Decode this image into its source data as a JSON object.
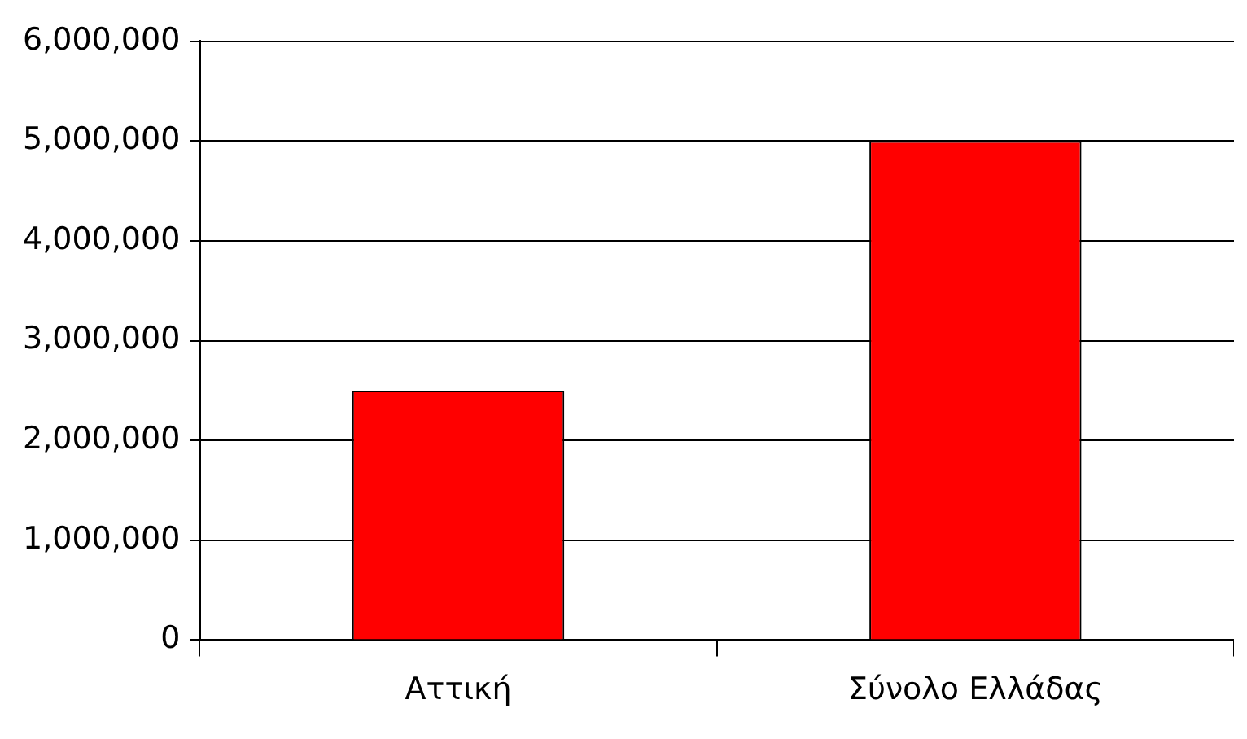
{
  "chart_data": {
    "type": "bar",
    "categories": [
      "Αττική",
      "Σύνολο Ελλάδας"
    ],
    "values": [
      2500000,
      5000000
    ],
    "color": "#ff0000",
    "ylim": [
      0,
      6000000
    ],
    "yticks": [
      0,
      {
        "value": 1000000,
        "label": "1,000,000"
      },
      {
        "value": 2000000,
        "label": "2,000,000"
      },
      {
        "value": 3000000,
        "label": "3,000,000"
      },
      {
        "value": 4000000,
        "label": "4,000,000"
      },
      {
        "value": 5000000,
        "label": "5,000,000"
      },
      {
        "value": 6000000,
        "label": "6,000,000"
      }
    ],
    "grid": "y"
  }
}
